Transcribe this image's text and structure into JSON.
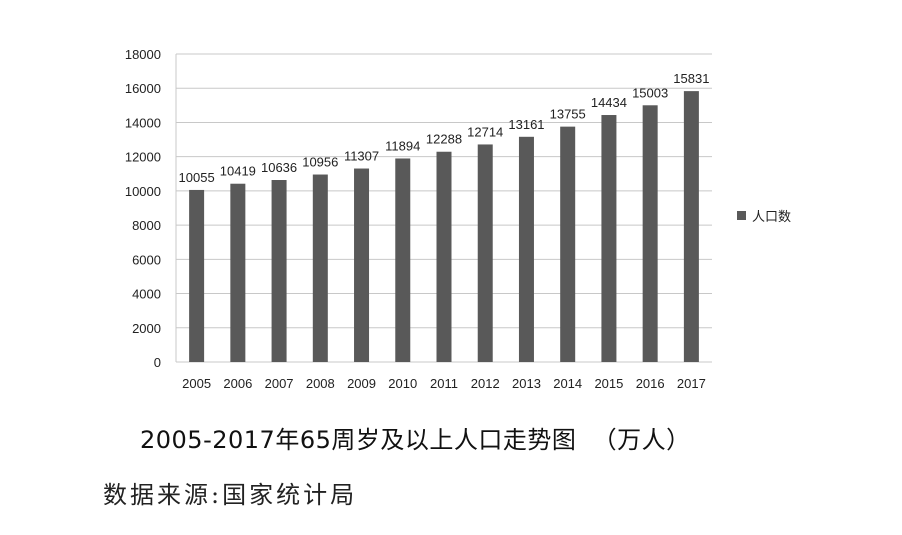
{
  "chart_data": {
    "type": "bar",
    "categories": [
      "2005",
      "2006",
      "2007",
      "2008",
      "2009",
      "2010",
      "2011",
      "2012",
      "2013",
      "2014",
      "2015",
      "2016",
      "2017"
    ],
    "series": [
      {
        "name": "人口数",
        "values": [
          10055,
          10419,
          10636,
          10956,
          11307,
          11894,
          12288,
          12714,
          13161,
          13755,
          14434,
          15003,
          15831
        ],
        "color": "#595959"
      }
    ],
    "ylim": [
      0,
      18000
    ],
    "yticks": [
      0,
      2000,
      4000,
      6000,
      8000,
      10000,
      12000,
      14000,
      16000,
      18000
    ],
    "grid": true,
    "legend_position": "right",
    "data_labels": true
  },
  "caption": {
    "title": "2005-2017年65周岁及以上人口走势图  （万人）",
    "source": "数据来源:国家统计局"
  }
}
